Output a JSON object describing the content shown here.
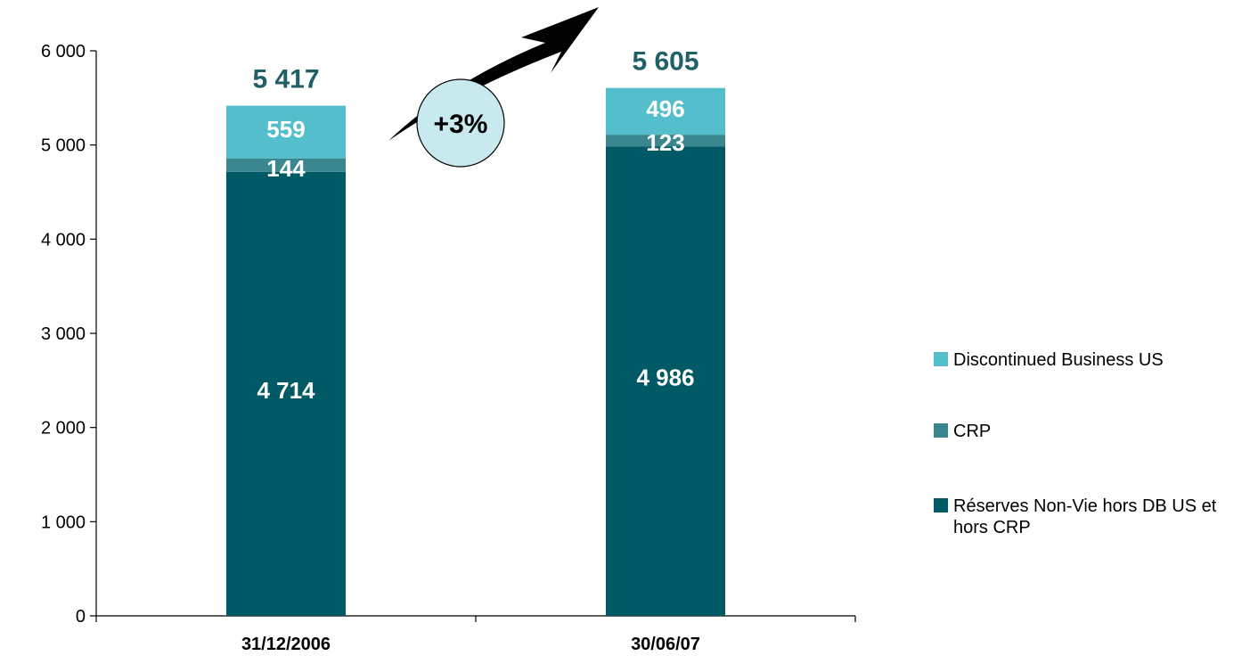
{
  "chart_data": {
    "type": "bar",
    "stacked": true,
    "categories": [
      "31/12/2006",
      "30/06/07"
    ],
    "series": [
      {
        "name": "Réserves Non-Vie hors DB US et hors CRP",
        "values": [
          4714,
          4986
        ],
        "labels": [
          "4 714",
          "4 986"
        ],
        "color": "#005A66"
      },
      {
        "name": "CRP",
        "values": [
          144,
          123
        ],
        "labels": [
          "144",
          "123"
        ],
        "color": "#3A878F"
      },
      {
        "name": "Discontinued Business US",
        "values": [
          559,
          496
        ],
        "labels": [
          "559",
          "496"
        ],
        "color": "#55BECC"
      }
    ],
    "totals": [
      5417,
      5605
    ],
    "total_labels": [
      "5 417",
      "5 605"
    ],
    "total_color": "#1F5F66",
    "growth_label": "+3%",
    "growth_badge_color": "#C8E9EE",
    "ylim": [
      0,
      6000
    ],
    "yticks": [
      0,
      1000,
      2000,
      3000,
      4000,
      5000,
      6000
    ],
    "ytick_labels": [
      "0",
      "1 000",
      "2 000",
      "3 000",
      "4 000",
      "5 000",
      "6 000"
    ],
    "grid": false,
    "legend_position": "right"
  }
}
